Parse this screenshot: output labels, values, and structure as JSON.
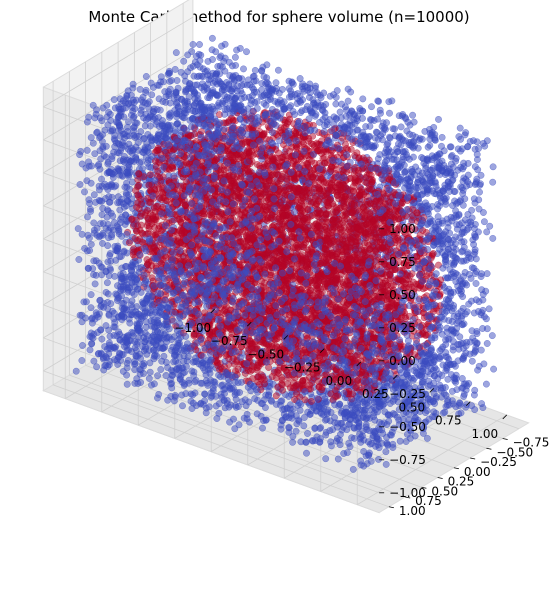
{
  "chart_data": {
    "type": "scatter",
    "title": "Monte Carlo method for sphere volume (n=10000)",
    "n": 10000,
    "xlabel": "",
    "ylabel": "",
    "zlabel": "",
    "xlim": [
      -1.0,
      1.0
    ],
    "ylim": [
      -1.0,
      1.0
    ],
    "zlim": [
      -1.0,
      1.0
    ],
    "xticks": [
      "−1.00",
      "−0.75",
      "−0.50",
      "−0.25",
      "0.00",
      "0.25",
      "0.50",
      "0.75",
      "1.00"
    ],
    "yticks": [
      "−0.75",
      "−0.50",
      "−0.25",
      "0.00",
      "0.25",
      "0.50",
      "0.75",
      "1.00"
    ],
    "zticks": [
      "−1.00",
      "−0.75",
      "−0.50",
      "−0.25",
      "0.00",
      "0.25",
      "0.50",
      "0.75",
      "1.00"
    ],
    "grid": true,
    "series": [
      {
        "color": "#b40426",
        "rule": "x^2+y^2+z^2 <= 1"
      },
      {
        "color": "#3b4cc0",
        "rule": "x^2+y^2+z^2 > 1"
      }
    ]
  }
}
